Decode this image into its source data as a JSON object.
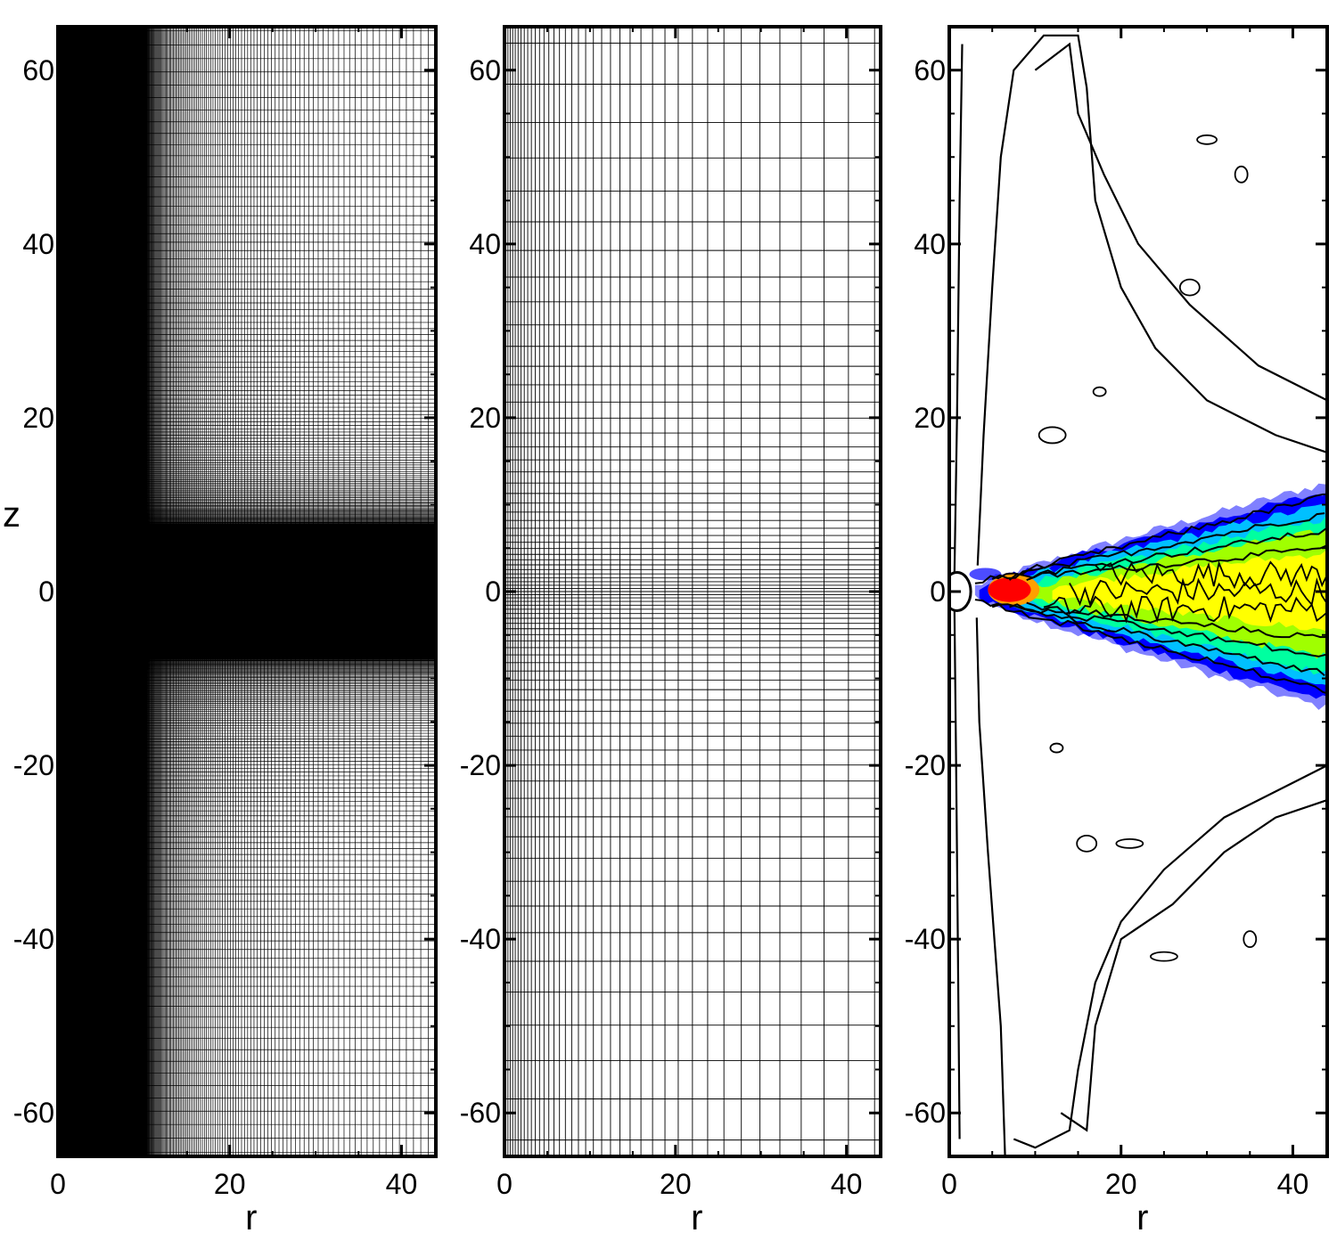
{
  "chart_data": [
    {
      "type": "mesh",
      "description_panel": "left",
      "xlabel": "r",
      "ylabel": "z",
      "xlim": [
        0,
        44
      ],
      "ylim": [
        -65,
        65
      ],
      "xticks": [
        0,
        20,
        40
      ],
      "yticks": [
        -60,
        -40,
        -20,
        0,
        20,
        40,
        60
      ],
      "xtick_labels": [
        "0",
        "20",
        "40"
      ],
      "ytick_labels": [
        "-60",
        "-40",
        "-20",
        "0",
        "20",
        "40",
        "60"
      ],
      "dense_region_r": [
        0,
        9.2
      ],
      "dense_region_z": [
        -7.8,
        7.8
      ],
      "line_color": "#000000"
    },
    {
      "type": "mesh",
      "description_panel": "middle",
      "xlabel": "r",
      "ylabel": "",
      "xlim": [
        0,
        44
      ],
      "ylim": [
        -65,
        65
      ],
      "xticks": [
        0,
        20,
        40
      ],
      "yticks": [
        -60,
        -40,
        -20,
        0,
        20,
        40,
        60
      ],
      "xtick_labels": [
        "0",
        "20",
        "40"
      ],
      "ytick_labels": [
        "-60",
        "-40",
        "-20",
        "0",
        "20",
        "40",
        "60"
      ],
      "line_color": "#000000"
    },
    {
      "type": "contour",
      "description_panel": "right",
      "xlabel": "r",
      "ylabel": "",
      "xlim": [
        0,
        44
      ],
      "ylim": [
        -65,
        65
      ],
      "xticks": [
        0,
        20,
        40
      ],
      "yticks": [
        -60,
        -40,
        -20,
        0,
        20,
        40,
        60
      ],
      "xtick_labels": [
        "0",
        "20",
        "40"
      ],
      "ytick_labels": [
        "-60",
        "-40",
        "-20",
        "0",
        "20",
        "40",
        "60"
      ],
      "colormap": [
        "#f8f8ff",
        "#8080ff",
        "#0000ff",
        "#00c0ff",
        "#00ffa0",
        "#a0ff00",
        "#ffff00",
        "#ffa000",
        "#ff0000"
      ],
      "line_color": "#000000"
    }
  ]
}
